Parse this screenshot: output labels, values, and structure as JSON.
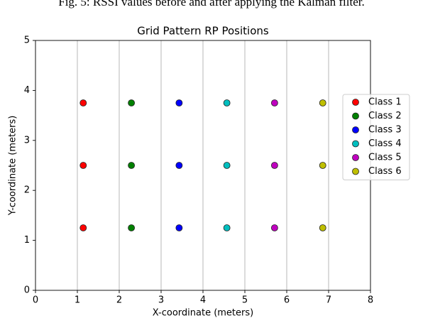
{
  "caption": "Fig. 5: RSSI values before and after applying the Kalman filter.",
  "chart_data": {
    "type": "scatter",
    "title": "Grid Pattern RP Positions",
    "x_label": "X-coordinate (meters)",
    "y_label": "Y-coordinate (meters)",
    "xlim": [
      0,
      8
    ],
    "ylim": [
      0,
      5
    ],
    "xticks": [
      0,
      1,
      2,
      3,
      4,
      5,
      6,
      7,
      8
    ],
    "yticks": [
      0,
      1,
      2,
      3,
      4,
      5
    ],
    "grid": "x",
    "legend": "right",
    "series": [
      {
        "name": "Class 1",
        "color": "#ff0000",
        "x": [
          1.14,
          1.14,
          1.14
        ],
        "values": [
          3.75,
          2.5,
          1.25
        ]
      },
      {
        "name": "Class 2",
        "color": "#008000",
        "x": [
          2.29,
          2.29,
          2.29
        ],
        "values": [
          3.75,
          2.5,
          1.25
        ]
      },
      {
        "name": "Class 3",
        "color": "#0000ff",
        "x": [
          3.43,
          3.43,
          3.43
        ],
        "values": [
          3.75,
          2.5,
          1.25
        ]
      },
      {
        "name": "Class 4",
        "color": "#00bfbf",
        "x": [
          4.57,
          4.57,
          4.57
        ],
        "values": [
          3.75,
          2.5,
          1.25
        ]
      },
      {
        "name": "Class 5",
        "color": "#bf00bf",
        "x": [
          5.71,
          5.71,
          5.71
        ],
        "values": [
          3.75,
          2.5,
          1.25
        ]
      },
      {
        "name": "Class 6",
        "color": "#bfbf00",
        "x": [
          6.86,
          6.86,
          6.86
        ],
        "values": [
          3.75,
          2.5,
          1.25
        ]
      }
    ]
  }
}
